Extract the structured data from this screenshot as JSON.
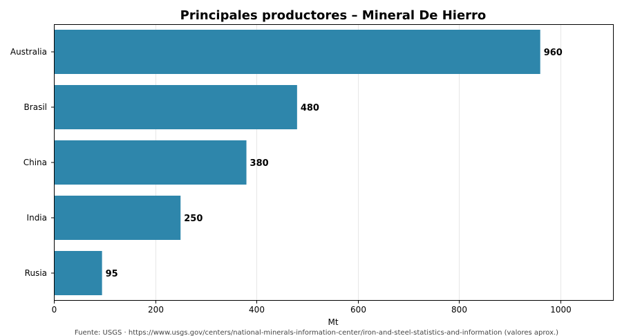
{
  "chart_data": {
    "type": "bar",
    "orientation": "horizontal",
    "title": "Principales productores – Mineral De Hierro",
    "xlabel": "Mt",
    "ylabel": "",
    "categories": [
      "Australia",
      "Brasil",
      "China",
      "India",
      "Rusia"
    ],
    "values": [
      960,
      480,
      380,
      250,
      95
    ],
    "data_labels": [
      "960",
      "480",
      "380",
      "250",
      "95"
    ],
    "xlim": [
      0,
      1105
    ],
    "xticks": [
      0,
      200,
      400,
      600,
      800,
      1000
    ],
    "xtick_labels": [
      "0",
      "200",
      "400",
      "600",
      "800",
      "1000"
    ],
    "grid": "vertical",
    "bar_color": "#2e86ab",
    "source": "Fuente: USGS · https://www.usgs.gov/centers/national-minerals-information-center/iron-and-steel-statistics-and-information (valores aprox.)"
  }
}
